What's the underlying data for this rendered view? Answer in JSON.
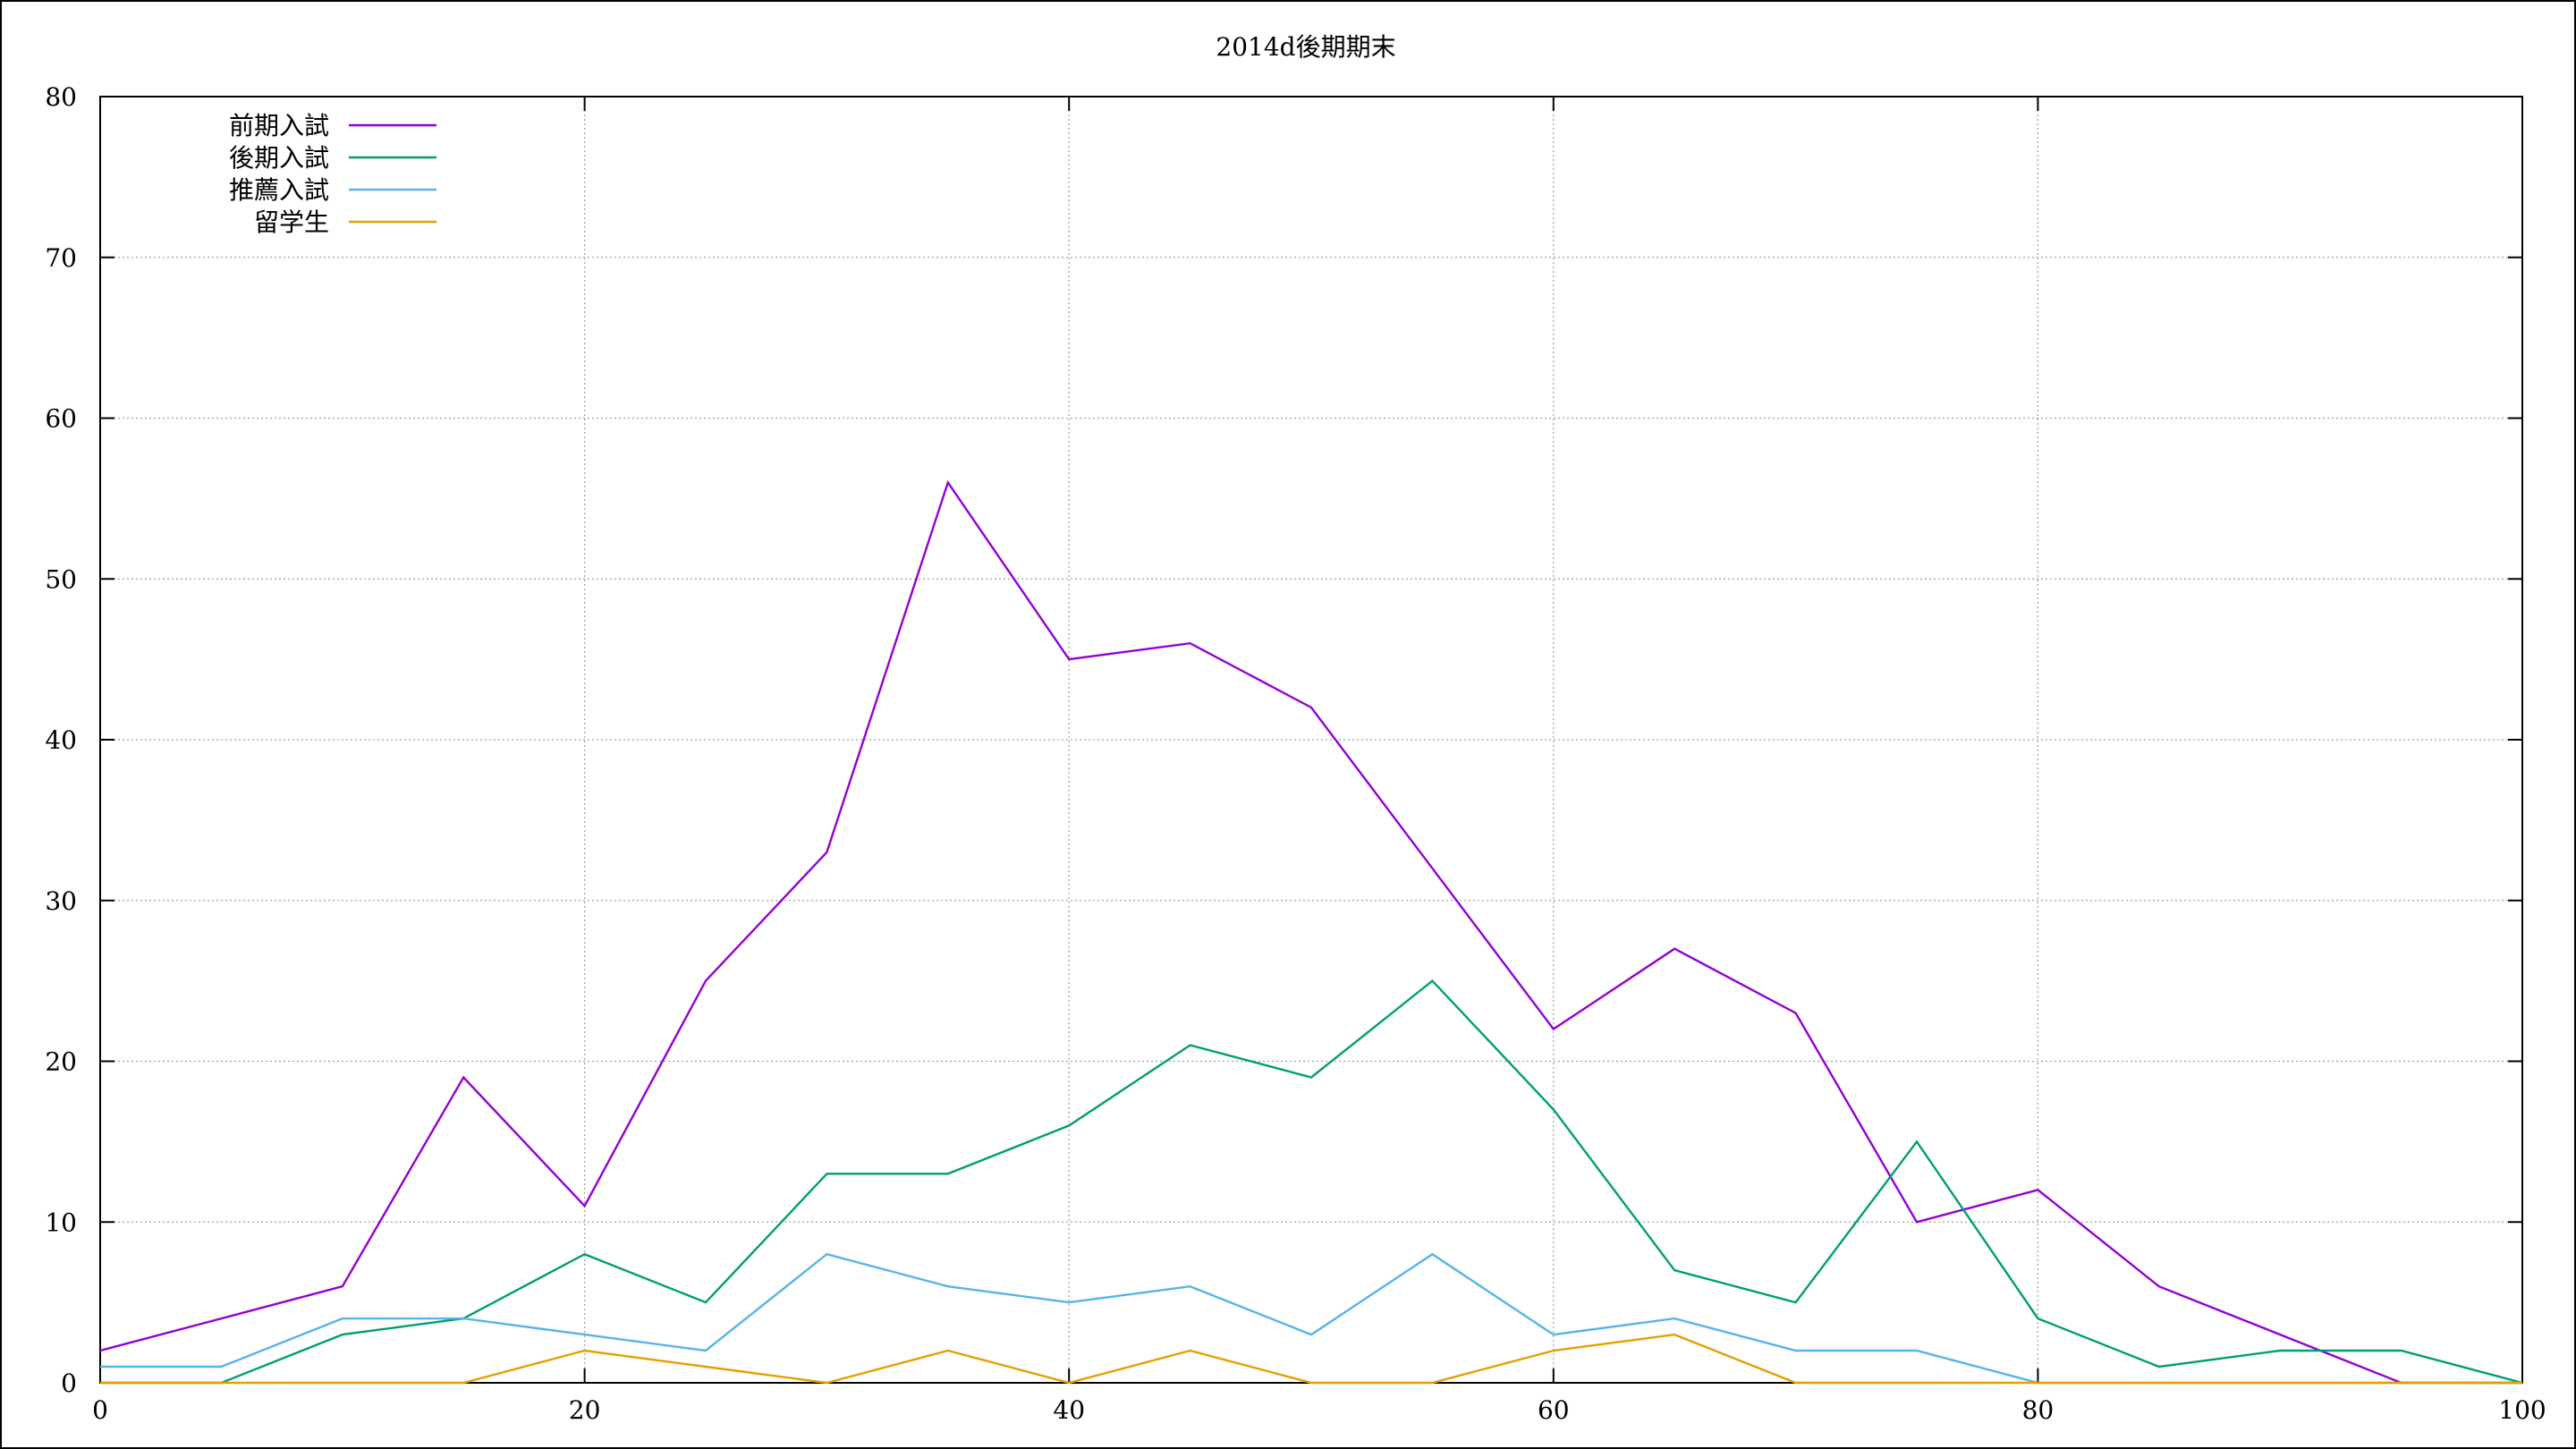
{
  "chart_data": {
    "type": "line",
    "title": "2014d後期期末",
    "xlabel": "",
    "ylabel": "",
    "xlim": [
      0,
      100
    ],
    "ylim": [
      0,
      80
    ],
    "xticks": [
      0,
      20,
      40,
      60,
      80,
      100
    ],
    "yticks": [
      0,
      10,
      20,
      30,
      40,
      50,
      60,
      70,
      80
    ],
    "grid": true,
    "legend_position": "top-left",
    "x": [
      0,
      5,
      10,
      15,
      20,
      25,
      30,
      35,
      40,
      45,
      50,
      55,
      60,
      65,
      70,
      75,
      80,
      85,
      90,
      95,
      100
    ],
    "series": [
      {
        "name": "前期入試",
        "color": "#9400d3",
        "values": [
          2,
          4,
          6,
          19,
          11,
          25,
          33,
          56,
          45,
          46,
          42,
          32,
          22,
          27,
          23,
          10,
          12,
          6,
          3,
          0,
          0
        ]
      },
      {
        "name": "後期入試",
        "color": "#009e73",
        "values": [
          0,
          0,
          3,
          4,
          8,
          5,
          13,
          13,
          16,
          21,
          19,
          25,
          17,
          7,
          5,
          15,
          4,
          1,
          2,
          2,
          0
        ]
      },
      {
        "name": "推薦入試",
        "color": "#56b4e9",
        "values": [
          1,
          1,
          4,
          4,
          3,
          2,
          8,
          6,
          5,
          6,
          3,
          8,
          3,
          4,
          2,
          2,
          0,
          0,
          0,
          0,
          0
        ]
      },
      {
        "name": "留学生",
        "color": "#e69f00",
        "values": [
          0,
          0,
          0,
          0,
          2,
          1,
          0,
          2,
          0,
          2,
          0,
          0,
          2,
          3,
          0,
          0,
          0,
          0,
          0,
          0,
          0
        ]
      }
    ]
  }
}
